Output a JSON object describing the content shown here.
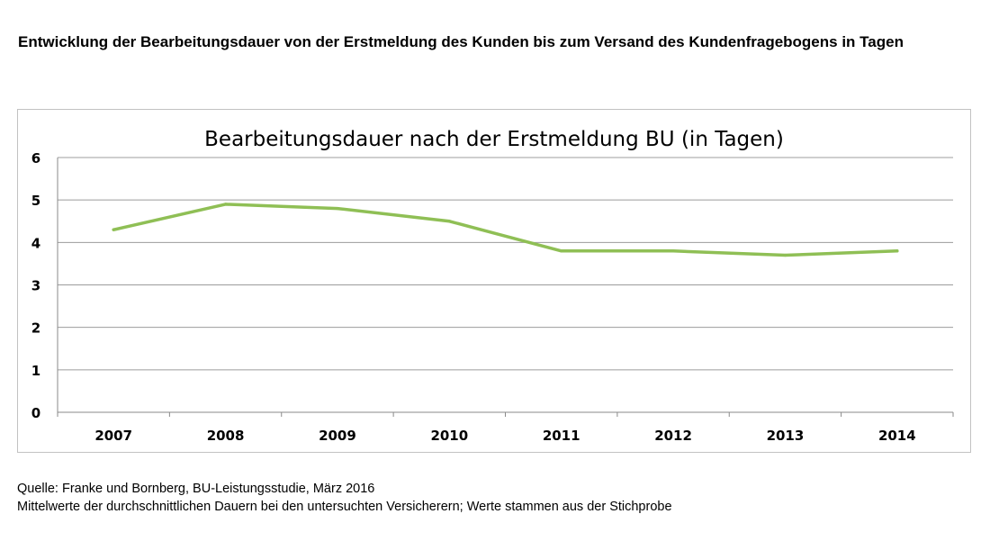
{
  "page": {
    "heading": "Entwicklung der Bearbeitungsdauer von der Erstmeldung des Kunden bis zum Versand des Kundenfragebogens in Tagen",
    "source_line": "Quelle: Franke und Bornberg, BU-Leistungsstudie, März 2016",
    "note_line": "Mittelwerte der durchschnittlichen Dauern bei den untersuchten Versicherern; Werte stammen aus der Stichprobe"
  },
  "colors": {
    "line": "#8fbf55",
    "grid": "#9c9c9c",
    "axis": "#8a8a8a",
    "frame": "#c2c2c2"
  },
  "chart_data": {
    "type": "line",
    "title": "Bearbeitungsdauer nach der Erstmeldung BU (in Tagen)",
    "xlabel": "",
    "ylabel": "",
    "categories": [
      "2007",
      "2008",
      "2009",
      "2010",
      "2011",
      "2012",
      "2013",
      "2014"
    ],
    "series": [
      {
        "name": "Bearbeitungsdauer",
        "values": [
          4.3,
          4.9,
          4.8,
          4.5,
          3.8,
          3.8,
          3.7,
          3.8
        ]
      }
    ],
    "ylim": [
      0,
      6
    ],
    "yticks": [
      "0",
      "1",
      "2",
      "3",
      "4",
      "5",
      "6"
    ],
    "grid": true,
    "legend": "none"
  }
}
